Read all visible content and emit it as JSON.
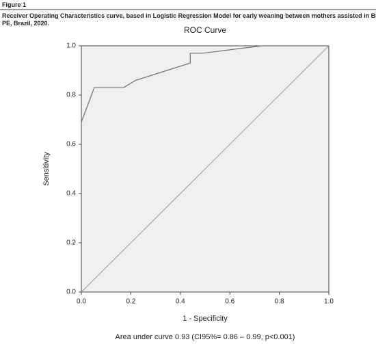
{
  "figure": {
    "label": "Figure 1",
    "caption": [
      "Receiver Operating Characteristics curve, based in Logistic Regression Model for early weaning between mothers assisted in BHU, Vitória de Santo Antão,",
      "PE, Brazil, 2020."
    ]
  },
  "chart_data": {
    "type": "line",
    "title": "ROC Curve",
    "x_label": "1 - Specificity",
    "y_label": "Sensitivity",
    "annotation": "Area under curve 0.93 (CI95%= 0.86 – 0.99, p<0.001)",
    "x": [
      0,
      0.052,
      0.17,
      0.22,
      0.44,
      0.44,
      0.49,
      0.73,
      1.0
    ],
    "y": [
      0.69,
      0.83,
      0.83,
      0.86,
      0.93,
      0.97,
      0.97,
      1.0,
      1.0
    ],
    "color": "#6e6e6e",
    "reference_line": {
      "x": [
        0,
        1
      ],
      "y": [
        0,
        1
      ],
      "color": "#9a9a9a"
    },
    "xlim": [
      0,
      1
    ],
    "ylim": [
      0,
      1
    ],
    "xticks": [
      {
        "value": 0,
        "label": "0.0"
      },
      {
        "value": 0.2,
        "label": "0.2"
      },
      {
        "value": 0.4,
        "label": "0.4"
      },
      {
        "value": 0.6,
        "label": "0.6"
      },
      {
        "value": 0.8,
        "label": "0.8"
      },
      {
        "value": 1,
        "label": "1.0"
      }
    ],
    "yticks": [
      {
        "value": 0,
        "label": "0.0"
      },
      {
        "value": 0.2,
        "label": "0.2"
      },
      {
        "value": 0.4,
        "label": "0.4"
      },
      {
        "value": 0.6,
        "label": "0.6"
      },
      {
        "value": 0.8,
        "label": "0.8"
      },
      {
        "value": 1,
        "label": "1.0"
      }
    ],
    "background": "#efefef"
  }
}
